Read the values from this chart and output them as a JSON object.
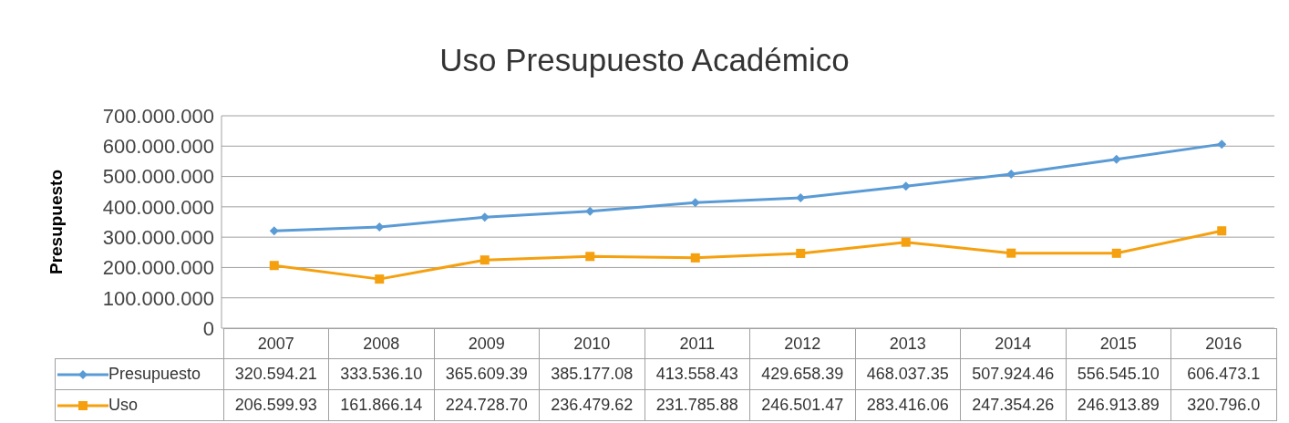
{
  "chart_data": {
    "type": "line",
    "title": "Uso Presupuesto Académico",
    "ylabel": "Presupuesto",
    "categories": [
      "2007",
      "2008",
      "2009",
      "2010",
      "2011",
      "2012",
      "2013",
      "2014",
      "2015",
      "2016"
    ],
    "series": [
      {
        "name": "Presupuesto",
        "color": "#5b9bd5",
        "marker": "diamond",
        "values": [
          320594210,
          333536100,
          365609390,
          385177080,
          413558430,
          429658390,
          468037350,
          507924460,
          556545100,
          606473100
        ],
        "value_labels": [
          "320.594.21",
          "333.536.10",
          "365.609.39",
          "385.177.08",
          "413.558.43",
          "429.658.39",
          "468.037.35",
          "507.924.46",
          "556.545.10",
          "606.473.1"
        ]
      },
      {
        "name": "Uso",
        "color": "#f5a00f",
        "marker": "square",
        "values": [
          206599930,
          161866140,
          224728700,
          236479620,
          231785880,
          246501470,
          283416060,
          247354260,
          246913890,
          320796000
        ],
        "value_labels": [
          "206.599.93",
          "161.866.14",
          "224.728.70",
          "236.479.62",
          "231.785.88",
          "246.501.47",
          "283.416.06",
          "247.354.26",
          "246.913.89",
          "320.796.0"
        ]
      }
    ],
    "ylim": [
      0,
      700000000
    ],
    "yticks": [
      0,
      {
        "value": 100000000,
        "label": "100.000.000"
      },
      {
        "value": 200000000,
        "label": "200.000.000"
      },
      {
        "value": 300000000,
        "label": "300.000.000"
      },
      {
        "value": 400000000,
        "label": "400.000.000"
      },
      {
        "value": 500000000,
        "label": "500.000.000"
      },
      {
        "value": 600000000,
        "label": "600.000.000"
      },
      {
        "value": 700000000,
        "label": "700.000.000"
      }
    ],
    "grid": "y",
    "legend": "bottom",
    "line_style": "solid"
  }
}
